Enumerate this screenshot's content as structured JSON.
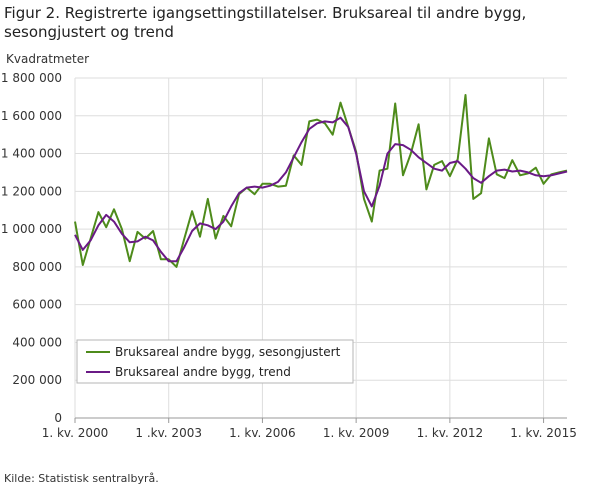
{
  "figure": {
    "title": "Figur 2. Registrerte igangsettingstillatelser. Bruksareal til andre bygg, sesongjustert og trend",
    "y_unit": "Kvadratmeter",
    "source": "Kilde:  Statistisk sentralbyrå."
  },
  "colors": {
    "seasonal": "#4e8b1b",
    "trend": "#6a1a86",
    "grid": "#dedede",
    "axis": "#999999"
  },
  "chart_data": {
    "type": "line",
    "title": "Figur 2. Registrerte igangsettingstillatelser. Bruksareal til andre bygg, sesongjustert og trend",
    "ylabel": "Kvadratmeter",
    "xlabel": "",
    "ylim": [
      0,
      1800000
    ],
    "yticks": [
      0,
      200000,
      400000,
      600000,
      800000,
      1000000,
      1200000,
      1400000,
      1600000,
      1800000
    ],
    "ytick_labels": [
      "0",
      "200 000",
      "400 000",
      "600 000",
      "800 000",
      "1 000 000",
      "1 200 000",
      "1 400 000",
      "1 600 000",
      "1 800 000"
    ],
    "x_start": "2000K1",
    "xticks": [
      {
        "index": 0,
        "label": "1. kv. 2000"
      },
      {
        "index": 12,
        "label": "1 .kv. 2003"
      },
      {
        "index": 24,
        "label": "1. kv. 2006"
      },
      {
        "index": 36,
        "label": "1. kv. 2009"
      },
      {
        "index": 48,
        "label": "1. kv. 2012"
      },
      {
        "index": 60,
        "label": "1. kv. 2015"
      }
    ],
    "grid": true,
    "legend_position": "bottom-left",
    "series": [
      {
        "name": "Bruksareal andre bygg, sesongjustert",
        "values": [
          1040000,
          810000,
          950000,
          1090000,
          1010000,
          1105000,
          1000000,
          830000,
          985000,
          950000,
          990000,
          840000,
          840000,
          800000,
          950000,
          1095000,
          960000,
          1160000,
          950000,
          1070000,
          1015000,
          1185000,
          1220000,
          1185000,
          1240000,
          1240000,
          1225000,
          1230000,
          1390000,
          1340000,
          1570000,
          1580000,
          1560000,
          1500000,
          1670000,
          1540000,
          1410000,
          1160000,
          1040000,
          1310000,
          1320000,
          1665000,
          1285000,
          1400000,
          1555000,
          1210000,
          1340000,
          1360000,
          1280000,
          1370000,
          1710000,
          1160000,
          1190000,
          1480000,
          1290000,
          1270000,
          1365000,
          1285000,
          1295000,
          1325000,
          1240000,
          1290000,
          1300000,
          1310000
        ]
      },
      {
        "name": "Bruksareal andre bygg, trend",
        "values": [
          970000,
          890000,
          940000,
          1020000,
          1075000,
          1040000,
          975000,
          930000,
          935000,
          960000,
          940000,
          880000,
          830000,
          830000,
          905000,
          990000,
          1030000,
          1020000,
          1000000,
          1040000,
          1120000,
          1190000,
          1220000,
          1225000,
          1220000,
          1230000,
          1250000,
          1300000,
          1380000,
          1460000,
          1530000,
          1560000,
          1570000,
          1565000,
          1590000,
          1540000,
          1400000,
          1200000,
          1120000,
          1230000,
          1400000,
          1450000,
          1445000,
          1420000,
          1380000,
          1350000,
          1320000,
          1310000,
          1350000,
          1360000,
          1320000,
          1270000,
          1245000,
          1280000,
          1310000,
          1315000,
          1305000,
          1310000,
          1300000,
          1285000,
          1280000,
          1285000,
          1295000,
          1305000
        ]
      }
    ]
  }
}
